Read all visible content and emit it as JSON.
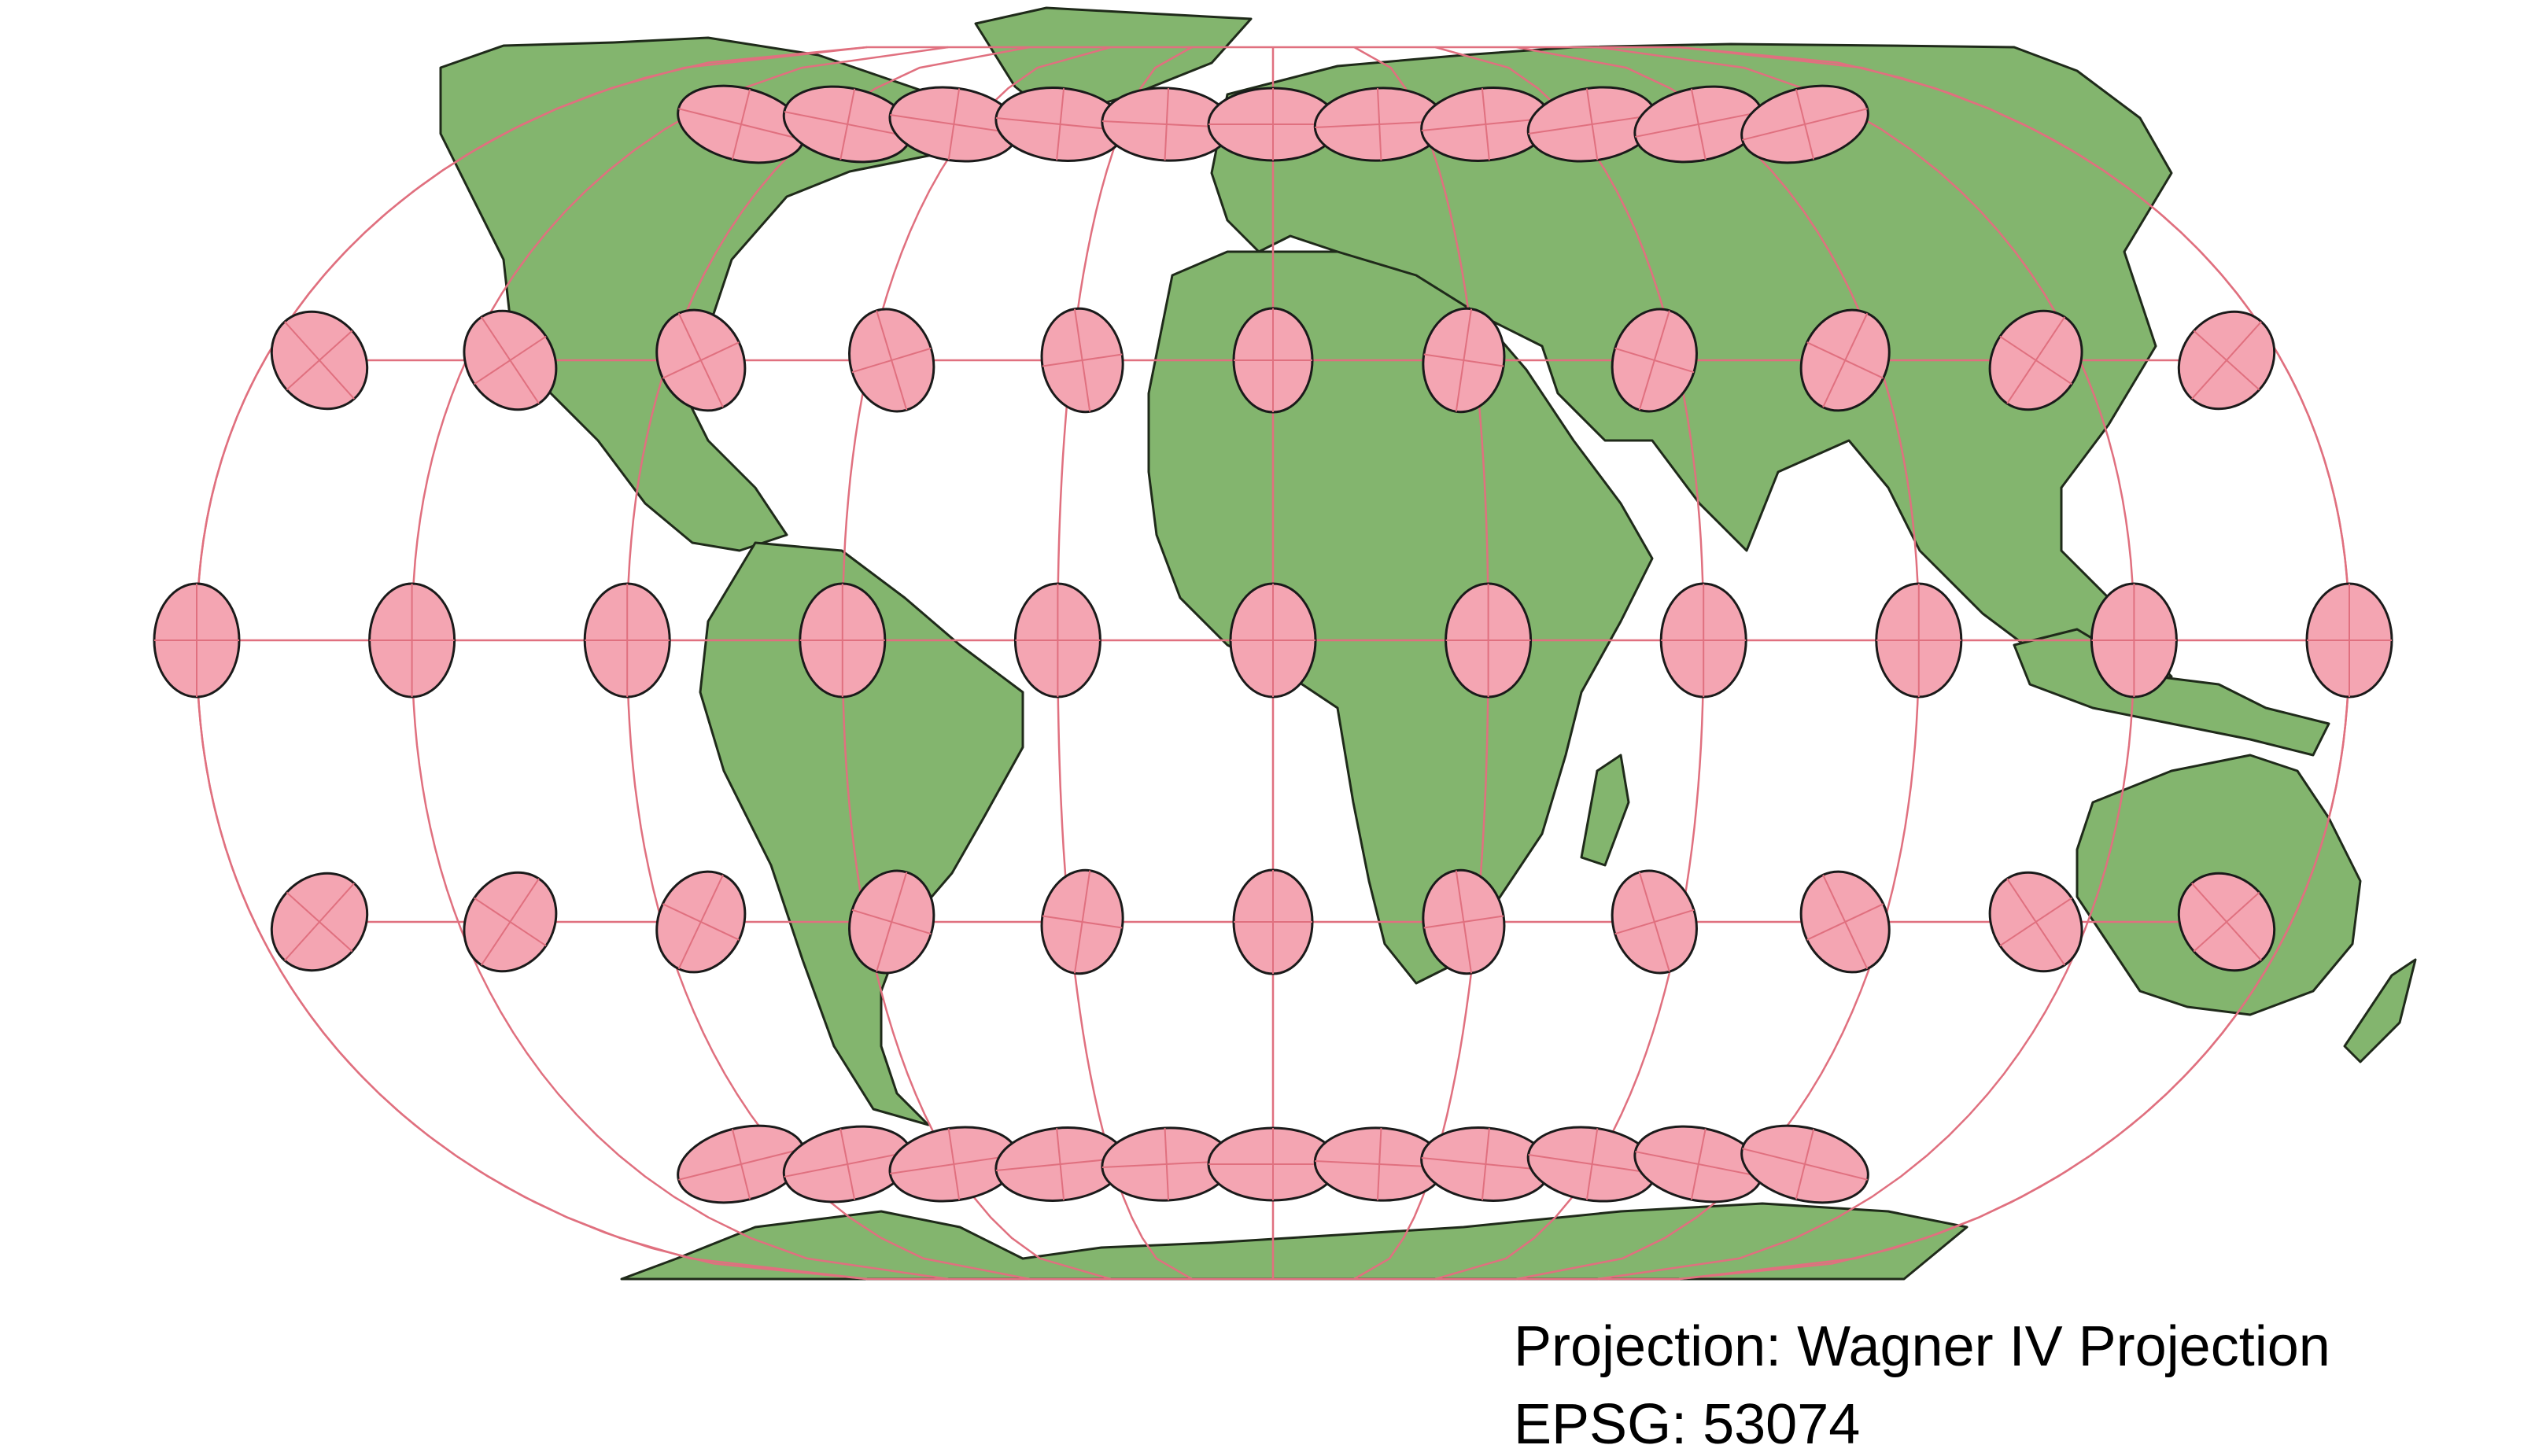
{
  "map": {
    "projection_line": "Projection: Wagner IV Projection",
    "epsg_line": "EPSG: 53074",
    "layers": {
      "land": {
        "fill": "#83b56e",
        "stroke": "#1f2a1a",
        "description": "world countries with borders"
      },
      "graticule": {
        "stroke": "#e0707f",
        "parallels_deg": [
          -60,
          -30,
          0,
          30,
          60
        ],
        "meridians": 11
      },
      "tissot_indicatrices": {
        "fill": "#f4a5b2",
        "stroke": "#1a1a1a",
        "rows_deg": [
          60,
          30,
          0,
          -30,
          -60
        ],
        "per_row": [
          11,
          11,
          11,
          11,
          11
        ]
      }
    }
  }
}
